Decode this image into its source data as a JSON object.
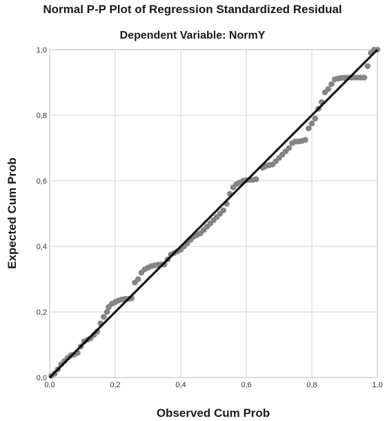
{
  "chart_data": {
    "type": "scatter",
    "title": "Normal P-P Plot of Regression Standardized Residual",
    "subtitle": "Dependent Variable: NormY",
    "xlabel": "Observed Cum Prob",
    "ylabel": "Expected Cum Prob",
    "xlim": [
      0,
      1
    ],
    "ylim": [
      0,
      1
    ],
    "x_ticks": [
      "0,0",
      "0,2",
      "0,4",
      "0,6",
      "0,8",
      "1,0"
    ],
    "y_ticks": [
      "0,0",
      "0,2",
      "0,4",
      "0,6",
      "0,8",
      "1,0"
    ],
    "grid": true,
    "reference_line": [
      [
        0,
        0
      ],
      [
        1,
        1
      ]
    ],
    "colors": {
      "points": "#858585",
      "line": "#000000",
      "grid": "#d0d0d0"
    },
    "points": [
      [
        0.005,
        0.005
      ],
      [
        0.015,
        0.012
      ],
      [
        0.025,
        0.025
      ],
      [
        0.035,
        0.04
      ],
      [
        0.045,
        0.05
      ],
      [
        0.055,
        0.06
      ],
      [
        0.065,
        0.068
      ],
      [
        0.075,
        0.07
      ],
      [
        0.085,
        0.075
      ],
      [
        0.095,
        0.095
      ],
      [
        0.105,
        0.11
      ],
      [
        0.115,
        0.115
      ],
      [
        0.125,
        0.12
      ],
      [
        0.135,
        0.13
      ],
      [
        0.145,
        0.14
      ],
      [
        0.155,
        0.165
      ],
      [
        0.165,
        0.185
      ],
      [
        0.175,
        0.2
      ],
      [
        0.18,
        0.215
      ],
      [
        0.19,
        0.225
      ],
      [
        0.2,
        0.23
      ],
      [
        0.21,
        0.235
      ],
      [
        0.22,
        0.238
      ],
      [
        0.23,
        0.24
      ],
      [
        0.24,
        0.24
      ],
      [
        0.25,
        0.242
      ],
      [
        0.26,
        0.29
      ],
      [
        0.27,
        0.3
      ],
      [
        0.28,
        0.32
      ],
      [
        0.29,
        0.33
      ],
      [
        0.3,
        0.335
      ],
      [
        0.31,
        0.34
      ],
      [
        0.32,
        0.342
      ],
      [
        0.33,
        0.344
      ],
      [
        0.34,
        0.345
      ],
      [
        0.35,
        0.345
      ],
      [
        0.36,
        0.36
      ],
      [
        0.37,
        0.375
      ],
      [
        0.38,
        0.38
      ],
      [
        0.39,
        0.385
      ],
      [
        0.4,
        0.39
      ],
      [
        0.41,
        0.4
      ],
      [
        0.42,
        0.41
      ],
      [
        0.43,
        0.42
      ],
      [
        0.44,
        0.43
      ],
      [
        0.45,
        0.435
      ],
      [
        0.46,
        0.44
      ],
      [
        0.47,
        0.45
      ],
      [
        0.48,
        0.46
      ],
      [
        0.49,
        0.47
      ],
      [
        0.5,
        0.48
      ],
      [
        0.51,
        0.49
      ],
      [
        0.52,
        0.5
      ],
      [
        0.53,
        0.51
      ],
      [
        0.54,
        0.53
      ],
      [
        0.55,
        0.56
      ],
      [
        0.56,
        0.58
      ],
      [
        0.57,
        0.59
      ],
      [
        0.58,
        0.595
      ],
      [
        0.59,
        0.6
      ],
      [
        0.6,
        0.602
      ],
      [
        0.61,
        0.603
      ],
      [
        0.62,
        0.603
      ],
      [
        0.63,
        0.605
      ],
      [
        0.65,
        0.64
      ],
      [
        0.66,
        0.645
      ],
      [
        0.67,
        0.648
      ],
      [
        0.68,
        0.65
      ],
      [
        0.69,
        0.66
      ],
      [
        0.7,
        0.67
      ],
      [
        0.71,
        0.68
      ],
      [
        0.72,
        0.69
      ],
      [
        0.73,
        0.7
      ],
      [
        0.74,
        0.715
      ],
      [
        0.75,
        0.72
      ],
      [
        0.76,
        0.72
      ],
      [
        0.77,
        0.722
      ],
      [
        0.78,
        0.725
      ],
      [
        0.79,
        0.76
      ],
      [
        0.8,
        0.775
      ],
      [
        0.81,
        0.79
      ],
      [
        0.82,
        0.82
      ],
      [
        0.83,
        0.84
      ],
      [
        0.84,
        0.87
      ],
      [
        0.85,
        0.88
      ],
      [
        0.86,
        0.895
      ],
      [
        0.87,
        0.91
      ],
      [
        0.88,
        0.912
      ],
      [
        0.89,
        0.914
      ],
      [
        0.9,
        0.914
      ],
      [
        0.91,
        0.915
      ],
      [
        0.92,
        0.915
      ],
      [
        0.93,
        0.915
      ],
      [
        0.94,
        0.915
      ],
      [
        0.95,
        0.915
      ],
      [
        0.96,
        0.915
      ],
      [
        0.97,
        0.95
      ],
      [
        0.98,
        0.99
      ],
      [
        0.99,
        1.0
      ],
      [
        1.0,
        1.0
      ]
    ]
  }
}
